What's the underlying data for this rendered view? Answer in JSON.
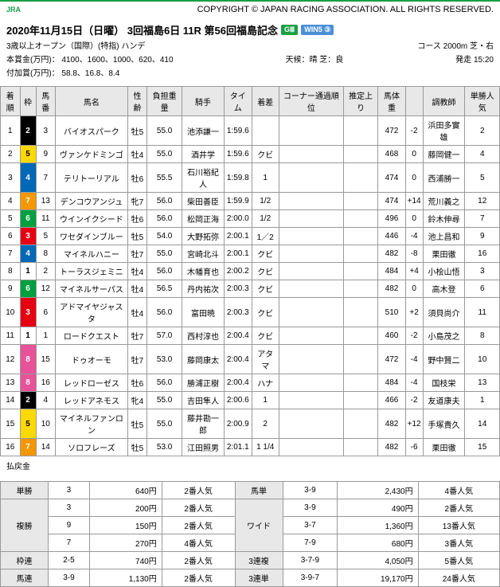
{
  "header": {
    "logo": "JRA",
    "copyright": "COPYRIGHT © JAPAN RACING ASSOCIATION. ALL RIGHTS RESERVED."
  },
  "race": {
    "title": "2020年11月15日（日曜） 3回福島6日 11R 第56回福島記念",
    "grade": "GⅢ",
    "win5": "WIN5 ③",
    "condition": "3歳以上オープン（国際）(特指) ハンデ",
    "course": "コース 2000m 芝・右",
    "prize": "本賞金(万円)： 4100、1600、1000、620、410",
    "weather": "天候：晴 芝：良",
    "start": "発走 15:20",
    "add_prize": "付加賞(万円)： 58.8、16.8、8.4"
  },
  "cols": [
    "着順",
    "枠",
    "馬番",
    "馬名",
    "性齢",
    "負担重量",
    "騎手",
    "タイム",
    "着差",
    "コーナー通過順位",
    "推定上り",
    "馬体重",
    "",
    "調教師",
    "単勝人気"
  ],
  "rows": [
    {
      "rank": "1",
      "waku": "2",
      "wakuCls": "waku-2",
      "num": "3",
      "name": "バイオスパーク",
      "sa": "牡5",
      "wt": "55.0",
      "jk": "池添謙一",
      "time": "1:59.6",
      "diff": "",
      "corner": "",
      "agari": "",
      "bw": "472",
      "bwd": "-2",
      "tr": "浜田多實雄",
      "pop": "2"
    },
    {
      "rank": "2",
      "waku": "5",
      "wakuCls": "waku-5",
      "num": "9",
      "name": "ヴァンケドミンゴ",
      "sa": "牡4",
      "wt": "55.0",
      "jk": "酒井学",
      "time": "1:59.6",
      "diff": "クビ",
      "corner": "",
      "agari": "",
      "bw": "468",
      "bwd": "0",
      "tr": "藤岡健一",
      "pop": "4"
    },
    {
      "rank": "3",
      "waku": "4",
      "wakuCls": "waku-4",
      "num": "7",
      "name": "テリトーリアル",
      "sa": "牡6",
      "wt": "55.5",
      "jk": "石川裕紀人",
      "time": "1:59.8",
      "diff": "1",
      "corner": "",
      "agari": "",
      "bw": "474",
      "bwd": "0",
      "tr": "西浦勝一",
      "pop": "5"
    },
    {
      "rank": "4",
      "waku": "7",
      "wakuCls": "waku-7",
      "num": "13",
      "name": "デンコウアンジュ",
      "sa": "牝7",
      "wt": "56.0",
      "jk": "柴田善臣",
      "time": "1:59.9",
      "diff": "1/2",
      "corner": "",
      "agari": "",
      "bw": "474",
      "bwd": "+14",
      "tr": "荒川義之",
      "pop": "12"
    },
    {
      "rank": "5",
      "waku": "6",
      "wakuCls": "waku-6",
      "num": "11",
      "name": "ウインイクシード",
      "sa": "牡6",
      "wt": "56.0",
      "jk": "松岡正海",
      "time": "2:00.0",
      "diff": "1/2",
      "corner": "",
      "agari": "",
      "bw": "496",
      "bwd": "0",
      "tr": "鈴木伸尋",
      "pop": "7"
    },
    {
      "rank": "6",
      "waku": "3",
      "wakuCls": "waku-3",
      "num": "5",
      "name": "ワセダインブルー",
      "sa": "牡5",
      "wt": "54.0",
      "jk": "大野拓弥",
      "time": "2:00.1",
      "diff": "1／2",
      "corner": "",
      "agari": "",
      "bw": "446",
      "bwd": "-4",
      "tr": "池上昌和",
      "pop": "9"
    },
    {
      "rank": "7",
      "waku": "4",
      "wakuCls": "waku-4",
      "num": "8",
      "name": "マイネルハニー",
      "sa": "牡7",
      "wt": "55.0",
      "jk": "宮崎北斗",
      "time": "2:00.1",
      "diff": "クビ",
      "corner": "",
      "agari": "",
      "bw": "482",
      "bwd": "-8",
      "tr": "栗田徹",
      "pop": "16"
    },
    {
      "rank": "8",
      "waku": "1",
      "wakuCls": "waku-1",
      "num": "2",
      "name": "トーラスジェミニ",
      "sa": "牡4",
      "wt": "56.0",
      "jk": "木幡育也",
      "time": "2:00.2",
      "diff": "クビ",
      "corner": "",
      "agari": "",
      "bw": "484",
      "bwd": "+4",
      "tr": "小桧山悟",
      "pop": "3"
    },
    {
      "rank": "9",
      "waku": "6",
      "wakuCls": "waku-6",
      "num": "12",
      "name": "マイネルサーパス",
      "sa": "牡4",
      "wt": "56.5",
      "jk": "丹内祐次",
      "time": "2:00.3",
      "diff": "クビ",
      "corner": "",
      "agari": "",
      "bw": "482",
      "bwd": "0",
      "tr": "高木登",
      "pop": "6"
    },
    {
      "rank": "10",
      "waku": "3",
      "wakuCls": "waku-3",
      "num": "6",
      "name": "アドマイヤジャスタ",
      "sa": "牡4",
      "wt": "56.0",
      "jk": "富田暁",
      "time": "2:00.3",
      "diff": "クビ",
      "corner": "",
      "agari": "",
      "bw": "510",
      "bwd": "+2",
      "tr": "須貝尚介",
      "pop": "11"
    },
    {
      "rank": "11",
      "waku": "1",
      "wakuCls": "waku-1",
      "num": "1",
      "name": "ロードクエスト",
      "sa": "牡7",
      "wt": "57.0",
      "jk": "西村淳也",
      "time": "2:00.4",
      "diff": "クビ",
      "corner": "",
      "agari": "",
      "bw": "460",
      "bwd": "-2",
      "tr": "小島茂之",
      "pop": "8"
    },
    {
      "rank": "12",
      "waku": "8",
      "wakuCls": "waku-8",
      "num": "15",
      "name": "ドゥオーモ",
      "sa": "牡7",
      "wt": "53.0",
      "jk": "藤岡康太",
      "time": "2:00.4",
      "diff": "アタマ",
      "corner": "",
      "agari": "",
      "bw": "472",
      "bwd": "-4",
      "tr": "野中賢二",
      "pop": "10"
    },
    {
      "rank": "13",
      "waku": "8",
      "wakuCls": "waku-8",
      "num": "16",
      "name": "レッドローゼス",
      "sa": "牡6",
      "wt": "56.0",
      "jk": "勝浦正樹",
      "time": "2:00.4",
      "diff": "ハナ",
      "corner": "",
      "agari": "",
      "bw": "484",
      "bwd": "-4",
      "tr": "国枝栄",
      "pop": "13"
    },
    {
      "rank": "14",
      "waku": "2",
      "wakuCls": "waku-2",
      "num": "4",
      "name": "レッドアネモス",
      "sa": "牝4",
      "wt": "55.0",
      "jk": "吉田隼人",
      "time": "2:00.6",
      "diff": "1",
      "corner": "",
      "agari": "",
      "bw": "466",
      "bwd": "-2",
      "tr": "友道康夫",
      "pop": "1"
    },
    {
      "rank": "15",
      "waku": "5",
      "wakuCls": "waku-5",
      "num": "10",
      "name": "マイネルファンロン",
      "sa": "牡5",
      "wt": "55.0",
      "jk": "藤井勘一郎",
      "time": "2:00.9",
      "diff": "2",
      "corner": "",
      "agari": "",
      "bw": "482",
      "bwd": "+12",
      "tr": "手塚貴久",
      "pop": "14"
    },
    {
      "rank": "16",
      "waku": "7",
      "wakuCls": "waku-7",
      "num": "14",
      "name": "ソロフレーズ",
      "sa": "牡5",
      "wt": "53.0",
      "jk": "江田照男",
      "time": "2:01.1",
      "diff": "1 1/4",
      "corner": "",
      "agari": "",
      "bw": "482",
      "bwd": "-6",
      "tr": "栗田徹",
      "pop": "15"
    }
  ],
  "payoutLabel": "払戻金",
  "payouts": [
    {
      "type": "単勝",
      "items": [
        {
          "num": "3",
          "yen": "640円",
          "pop": "2番人気"
        }
      ],
      "type2": "馬単",
      "items2": [
        {
          "num": "3-9",
          "yen": "2,430円",
          "pop": "4番人気"
        }
      ]
    },
    {
      "type": "複勝",
      "items": [
        {
          "num": "3",
          "yen": "200円",
          "pop": "2番人気"
        },
        {
          "num": "9",
          "yen": "150円",
          "pop": "2番人気"
        },
        {
          "num": "7",
          "yen": "270円",
          "pop": "4番人気"
        }
      ],
      "type2": "ワイド",
      "items2": [
        {
          "num": "3-9",
          "yen": "490円",
          "pop": "2番人気"
        },
        {
          "num": "3-7",
          "yen": "1,360円",
          "pop": "13番人気"
        },
        {
          "num": "7-9",
          "yen": "680円",
          "pop": "3番人気"
        }
      ]
    },
    {
      "type": "枠連",
      "items": [
        {
          "num": "2-5",
          "yen": "740円",
          "pop": "2番人気"
        }
      ],
      "type2": "3連複",
      "items2": [
        {
          "num": "3-7-9",
          "yen": "4,050円",
          "pop": "5番人気"
        }
      ]
    },
    {
      "type": "馬連",
      "items": [
        {
          "num": "3-9",
          "yen": "1,130円",
          "pop": "2番人気"
        }
      ],
      "type2": "3連単",
      "items2": [
        {
          "num": "3-9-7",
          "yen": "19,170円",
          "pop": "24番人気"
        }
      ]
    }
  ]
}
